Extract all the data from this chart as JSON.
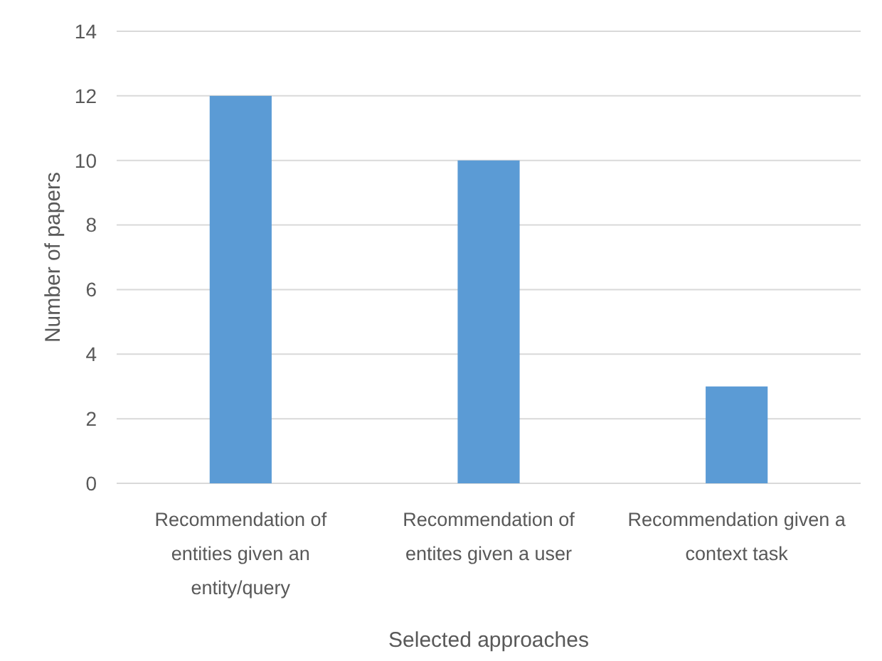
{
  "chart_data": {
    "type": "bar",
    "xlabel": "Selected approaches",
    "ylabel": "Number of papers",
    "categories": [
      "Recommendation of entities given an entity/query",
      "Recommendation of entites given a user",
      "Recommendation given a context task"
    ],
    "values": [
      12,
      10,
      3
    ],
    "color": "#5b9bd5",
    "ylim": [
      0,
      14
    ],
    "yticks": [
      0,
      2,
      4,
      6,
      8,
      10,
      12,
      14
    ],
    "grid": "y"
  }
}
